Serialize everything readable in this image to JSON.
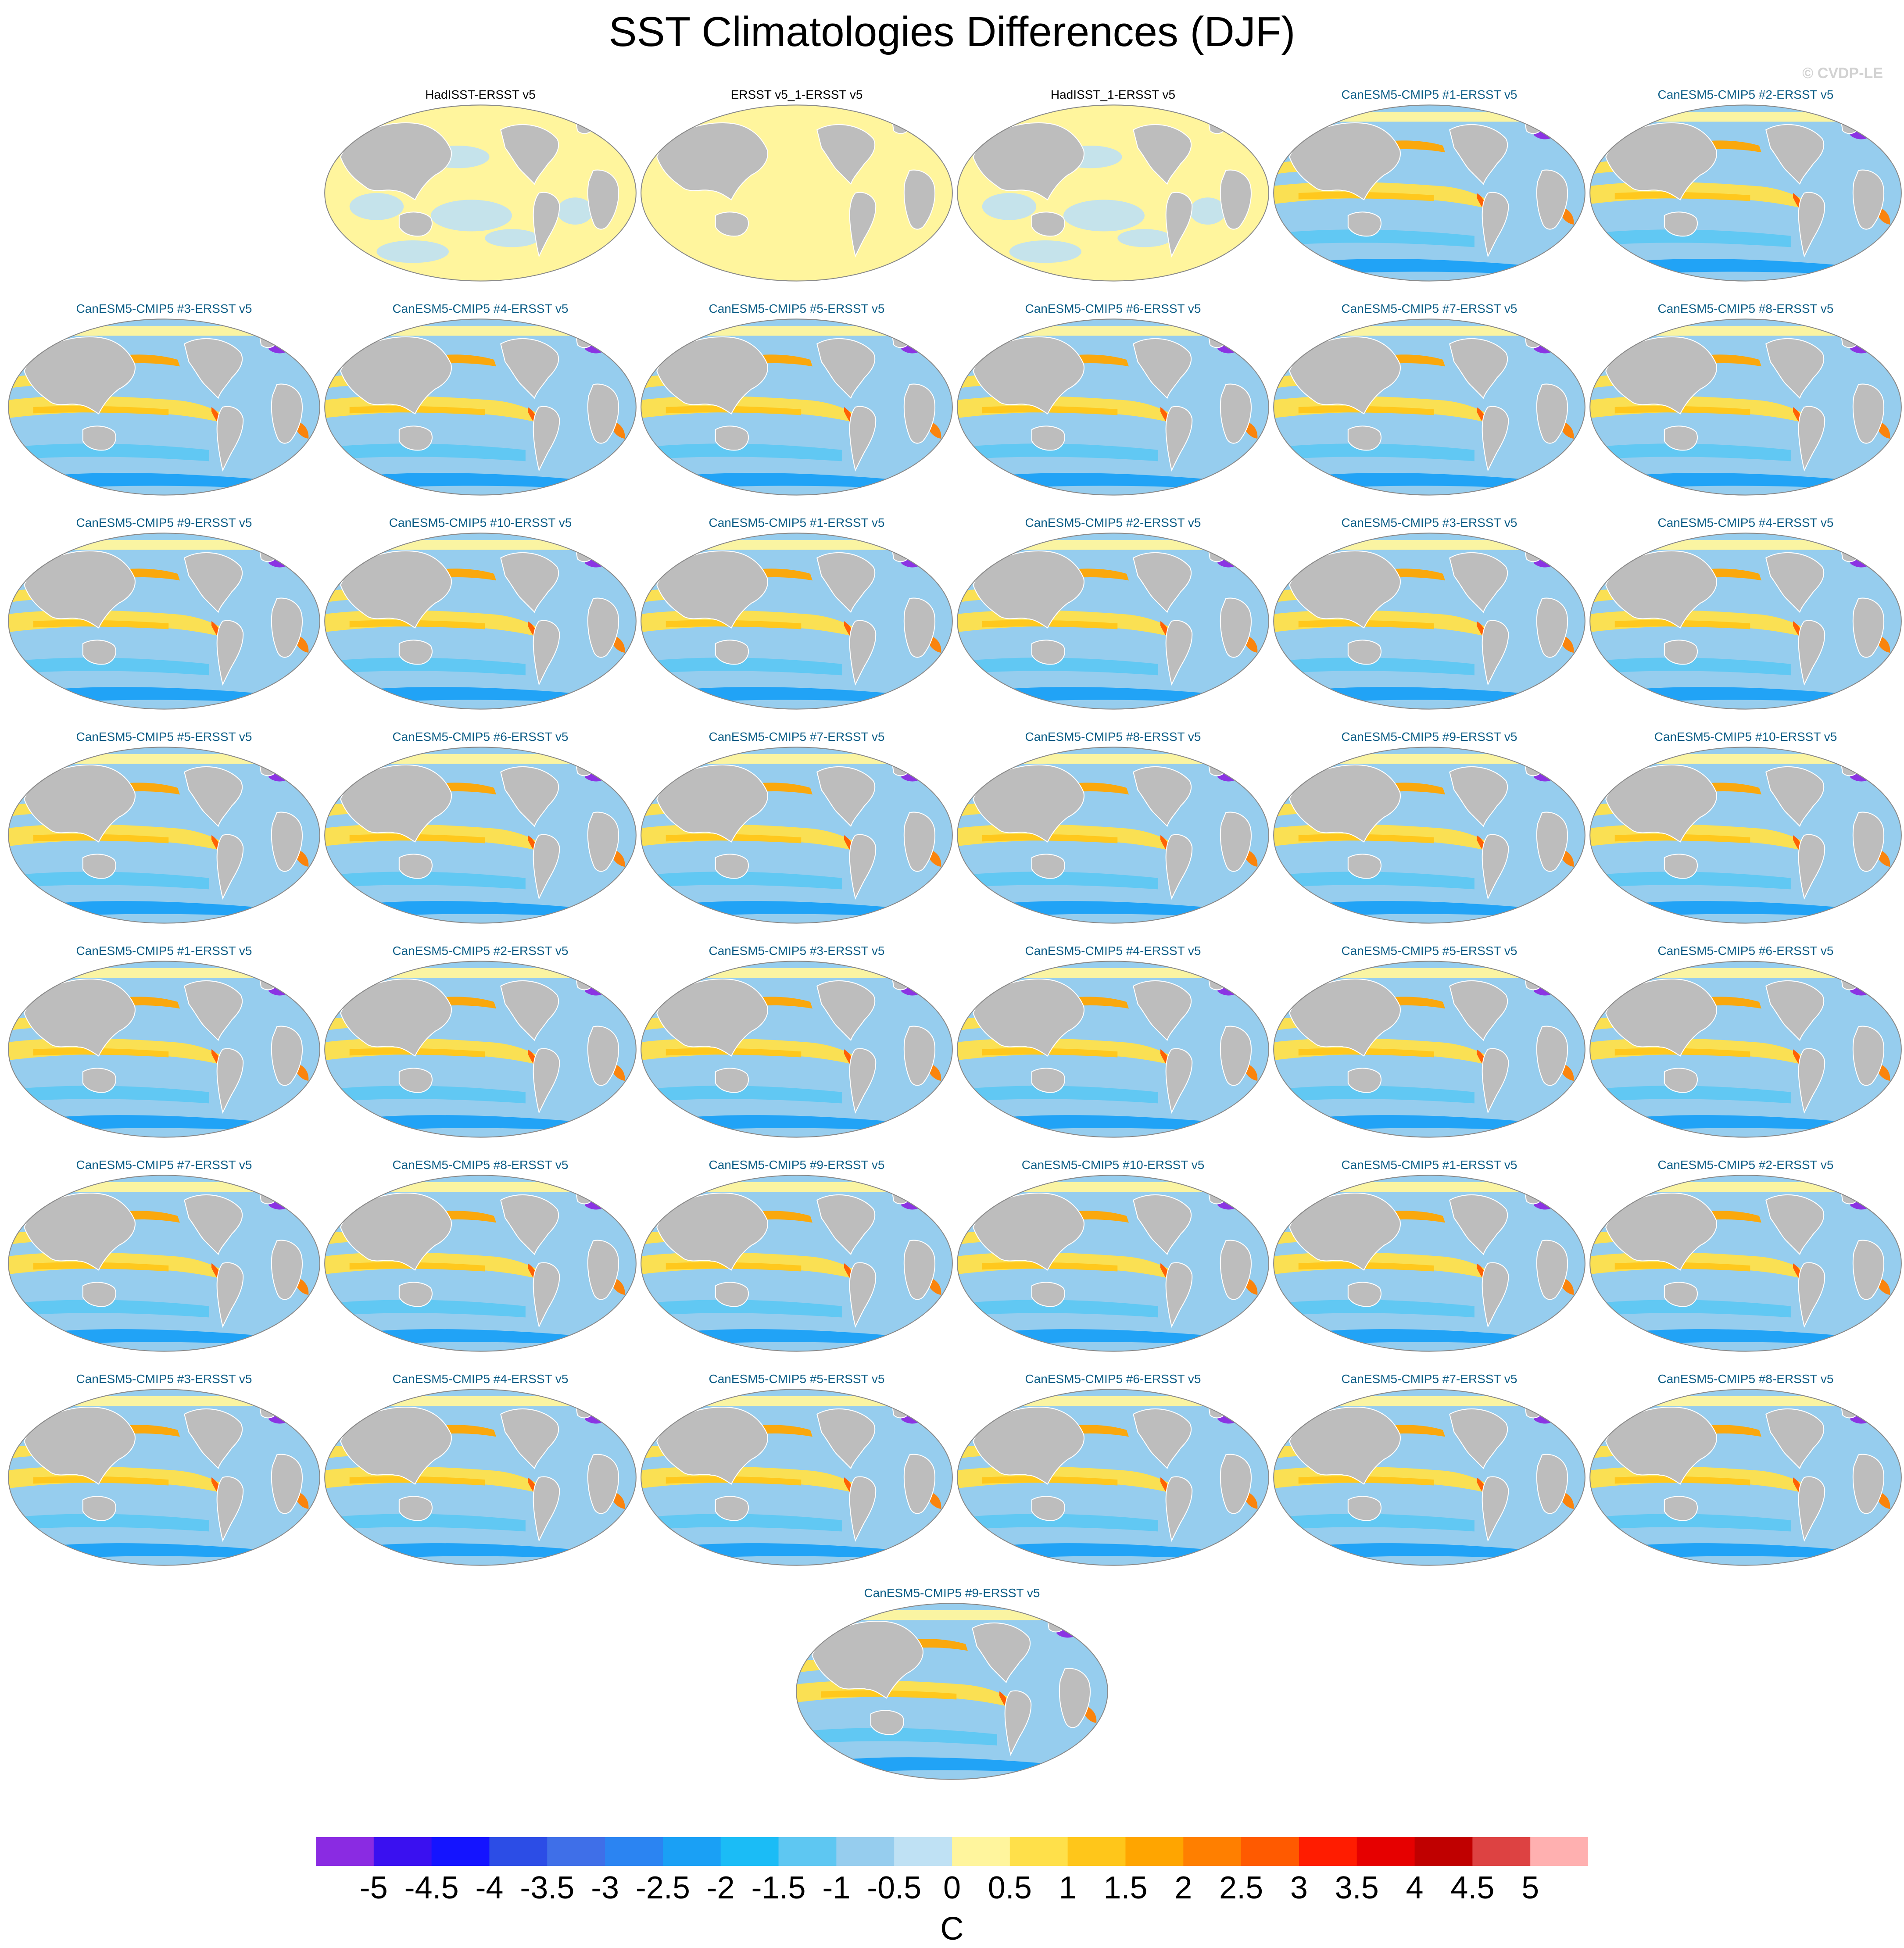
{
  "title": "SST Climatologies Differences (DJF)",
  "copyright": "© CVDP-LE",
  "chart_data": {
    "type": "heatmap",
    "variable": "SST climatology difference",
    "season": "DJF",
    "projection": "Robinson (Pacific-centered global map)",
    "panels": [
      {
        "title": "HadISST-ERSST v5",
        "kind": "obs"
      },
      {
        "title": "ERSST v5_1-ERSST v5",
        "kind": "obs"
      },
      {
        "title": "HadISST_1-ERSST v5",
        "kind": "obs"
      },
      {
        "title": "CanESM5-CMIP5 #1-ERSST v5",
        "kind": "model"
      },
      {
        "title": "CanESM5-CMIP5 #2-ERSST v5",
        "kind": "model"
      },
      {
        "title": "CanESM5-CMIP5 #3-ERSST v5",
        "kind": "model"
      },
      {
        "title": "CanESM5-CMIP5 #4-ERSST v5",
        "kind": "model"
      },
      {
        "title": "CanESM5-CMIP5 #5-ERSST v5",
        "kind": "model"
      },
      {
        "title": "CanESM5-CMIP5 #6-ERSST v5",
        "kind": "model"
      },
      {
        "title": "CanESM5-CMIP5 #7-ERSST v5",
        "kind": "model"
      },
      {
        "title": "CanESM5-CMIP5 #8-ERSST v5",
        "kind": "model"
      },
      {
        "title": "CanESM5-CMIP5 #9-ERSST v5",
        "kind": "model"
      },
      {
        "title": "CanESM5-CMIP5 #10-ERSST v5",
        "kind": "model"
      },
      {
        "title": "CanESM5-CMIP5 #1-ERSST v5",
        "kind": "model"
      },
      {
        "title": "CanESM5-CMIP5 #2-ERSST v5",
        "kind": "model"
      },
      {
        "title": "CanESM5-CMIP5 #3-ERSST v5",
        "kind": "model"
      },
      {
        "title": "CanESM5-CMIP5 #4-ERSST v5",
        "kind": "model"
      },
      {
        "title": "CanESM5-CMIP5 #5-ERSST v5",
        "kind": "model"
      },
      {
        "title": "CanESM5-CMIP5 #6-ERSST v5",
        "kind": "model"
      },
      {
        "title": "CanESM5-CMIP5 #7-ERSST v5",
        "kind": "model"
      },
      {
        "title": "CanESM5-CMIP5 #8-ERSST v5",
        "kind": "model"
      },
      {
        "title": "CanESM5-CMIP5 #9-ERSST v5",
        "kind": "model"
      },
      {
        "title": "CanESM5-CMIP5 #10-ERSST v5",
        "kind": "model"
      },
      {
        "title": "CanESM5-CMIP5 #1-ERSST v5",
        "kind": "model"
      },
      {
        "title": "CanESM5-CMIP5 #2-ERSST v5",
        "kind": "model"
      },
      {
        "title": "CanESM5-CMIP5 #3-ERSST v5",
        "kind": "model"
      },
      {
        "title": "CanESM5-CMIP5 #4-ERSST v5",
        "kind": "model"
      },
      {
        "title": "CanESM5-CMIP5 #5-ERSST v5",
        "kind": "model"
      },
      {
        "title": "CanESM5-CMIP5 #6-ERSST v5",
        "kind": "model"
      },
      {
        "title": "CanESM5-CMIP5 #7-ERSST v5",
        "kind": "model"
      },
      {
        "title": "CanESM5-CMIP5 #8-ERSST v5",
        "kind": "model"
      },
      {
        "title": "CanESM5-CMIP5 #9-ERSST v5",
        "kind": "model"
      },
      {
        "title": "CanESM5-CMIP5 #10-ERSST v5",
        "kind": "model"
      },
      {
        "title": "CanESM5-CMIP5 #1-ERSST v5",
        "kind": "model"
      },
      {
        "title": "CanESM5-CMIP5 #2-ERSST v5",
        "kind": "model"
      },
      {
        "title": "CanESM5-CMIP5 #3-ERSST v5",
        "kind": "model"
      },
      {
        "title": "CanESM5-CMIP5 #4-ERSST v5",
        "kind": "model"
      },
      {
        "title": "CanESM5-CMIP5 #5-ERSST v5",
        "kind": "model"
      },
      {
        "title": "CanESM5-CMIP5 #6-ERSST v5",
        "kind": "model"
      },
      {
        "title": "CanESM5-CMIP5 #7-ERSST v5",
        "kind": "model"
      },
      {
        "title": "CanESM5-CMIP5 #8-ERSST v5",
        "kind": "model"
      },
      {
        "title": "CanESM5-CMIP5 #9-ERSST v5",
        "kind": "model"
      }
    ],
    "colorbar": {
      "unit": "C",
      "levels": [
        -5,
        -4.5,
        -4,
        -3.5,
        -3,
        -2.5,
        -2,
        -1.5,
        -1,
        -0.5,
        0,
        0.5,
        1,
        1.5,
        2,
        2.5,
        3,
        3.5,
        4,
        4.5,
        5
      ],
      "tick_labels": [
        "-5",
        "-4.5",
        "-4",
        "-3.5",
        "-3",
        "-2.5",
        "-2",
        "-1.5",
        "-1",
        "-0.5",
        "0",
        "0.5",
        "1",
        "1.5",
        "2",
        "2.5",
        "3",
        "3.5",
        "4",
        "4.5",
        "5"
      ],
      "colors": [
        "#8a2be2",
        "#3a10f0",
        "#1414ff",
        "#2c4de6",
        "#3f6fe8",
        "#2b84f2",
        "#1aa0f5",
        "#1bbcf6",
        "#5ec7f2",
        "#96cdee",
        "#bfe1f4",
        "#fff59d",
        "#ffe04a",
        "#ffc61a",
        "#ffa500",
        "#ff7f00",
        "#ff5a00",
        "#ff1c00",
        "#e60000",
        "#c00000",
        "#dd4242",
        "#ffb0b0"
      ]
    }
  },
  "colors": {
    "land": "#bdbdbd",
    "ocean_neutral_pos": "#fff59d",
    "ocean_neutral_neg": "#bfe1f4",
    "model_title": "#0b5d86",
    "obs_title": "#000000"
  }
}
